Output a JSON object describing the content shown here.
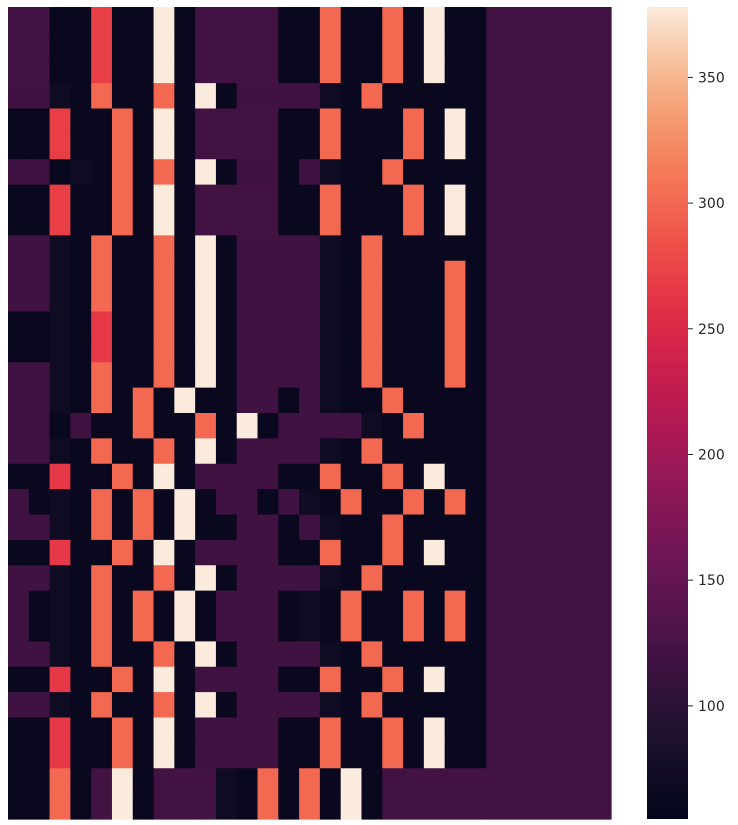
{
  "chart_data": {
    "type": "heatmap",
    "title": "",
    "xlabel": "",
    "ylabel": "",
    "n_cols": 29,
    "n_rows": 32,
    "colormap": "rocket",
    "colorbar": {
      "min": 55,
      "max": 378,
      "ticks": [
        100,
        150,
        200,
        250,
        300,
        350
      ],
      "tick_labels": [
        "100",
        "150",
        "200",
        "250",
        "300",
        "350"
      ]
    },
    "values": [
      [
        120,
        120,
        62,
        62,
        270,
        62,
        62,
        378,
        62,
        120,
        120,
        120,
        120,
        62,
        62,
        300,
        62,
        62,
        300,
        62,
        378,
        62,
        62,
        120,
        120,
        120,
        120,
        120,
        120
      ],
      [
        120,
        120,
        62,
        62,
        270,
        62,
        62,
        378,
        62,
        120,
        120,
        120,
        120,
        62,
        62,
        300,
        62,
        62,
        300,
        62,
        378,
        62,
        62,
        120,
        120,
        120,
        120,
        120,
        120
      ],
      [
        120,
        120,
        62,
        62,
        270,
        62,
        62,
        378,
        62,
        120,
        120,
        120,
        120,
        62,
        62,
        300,
        62,
        62,
        300,
        62,
        378,
        62,
        62,
        120,
        120,
        120,
        120,
        120,
        120
      ],
      [
        118,
        118,
        70,
        62,
        300,
        62,
        62,
        300,
        62,
        378,
        62,
        118,
        118,
        118,
        118,
        70,
        62,
        300,
        62,
        62,
        62,
        62,
        62,
        120,
        120,
        120,
        120,
        120,
        120
      ],
      [
        62,
        62,
        270,
        62,
        62,
        300,
        62,
        378,
        62,
        120,
        120,
        120,
        120,
        62,
        62,
        300,
        62,
        62,
        62,
        300,
        62,
        378,
        62,
        120,
        120,
        120,
        120,
        120,
        120
      ],
      [
        62,
        62,
        270,
        62,
        62,
        300,
        62,
        378,
        62,
        120,
        120,
        120,
        120,
        62,
        62,
        300,
        62,
        62,
        62,
        300,
        62,
        378,
        62,
        120,
        120,
        120,
        120,
        120,
        120
      ],
      [
        118,
        118,
        62,
        70,
        62,
        300,
        62,
        300,
        62,
        378,
        62,
        118,
        118,
        62,
        118,
        70,
        62,
        62,
        300,
        62,
        62,
        62,
        62,
        120,
        120,
        120,
        120,
        120,
        120
      ],
      [
        62,
        62,
        270,
        62,
        62,
        300,
        62,
        378,
        62,
        120,
        120,
        120,
        120,
        62,
        62,
        300,
        62,
        62,
        62,
        300,
        62,
        378,
        62,
        120,
        120,
        120,
        120,
        120,
        120
      ],
      [
        62,
        62,
        270,
        62,
        62,
        300,
        62,
        378,
        62,
        120,
        120,
        120,
        120,
        62,
        62,
        300,
        62,
        62,
        62,
        300,
        62,
        378,
        62,
        120,
        120,
        120,
        120,
        120,
        120
      ],
      [
        118,
        118,
        70,
        62,
        300,
        62,
        62,
        300,
        62,
        378,
        62,
        118,
        118,
        118,
        118,
        70,
        62,
        300,
        62,
        62,
        62,
        62,
        62,
        120,
        120,
        120,
        120,
        120,
        120
      ],
      [
        118,
        118,
        70,
        62,
        300,
        62,
        62,
        300,
        62,
        378,
        62,
        118,
        118,
        118,
        118,
        70,
        62,
        300,
        62,
        62,
        62,
        300,
        62,
        120,
        120,
        120,
        120,
        120,
        120
      ],
      [
        118,
        118,
        70,
        62,
        300,
        62,
        62,
        300,
        62,
        378,
        62,
        118,
        118,
        118,
        118,
        70,
        62,
        300,
        62,
        62,
        62,
        300,
        62,
        120,
        120,
        120,
        120,
        120,
        120
      ],
      [
        62,
        62,
        70,
        62,
        265,
        62,
        62,
        300,
        62,
        378,
        62,
        118,
        118,
        118,
        118,
        70,
        62,
        300,
        62,
        62,
        62,
        300,
        62,
        120,
        120,
        120,
        120,
        120,
        120
      ],
      [
        62,
        62,
        70,
        62,
        265,
        62,
        62,
        300,
        62,
        378,
        62,
        118,
        118,
        118,
        118,
        70,
        62,
        300,
        62,
        62,
        62,
        300,
        62,
        120,
        120,
        120,
        120,
        120,
        120
      ],
      [
        118,
        118,
        70,
        62,
        300,
        62,
        62,
        300,
        62,
        378,
        62,
        118,
        118,
        118,
        118,
        70,
        62,
        300,
        62,
        62,
        62,
        300,
        62,
        120,
        120,
        120,
        120,
        120,
        120
      ],
      [
        118,
        118,
        70,
        62,
        300,
        62,
        300,
        62,
        378,
        62,
        62,
        118,
        118,
        62,
        118,
        70,
        62,
        62,
        300,
        62,
        62,
        62,
        62,
        120,
        120,
        120,
        120,
        120,
        120
      ],
      [
        118,
        118,
        62,
        118,
        62,
        62,
        300,
        62,
        62,
        300,
        62,
        378,
        62,
        118,
        118,
        118,
        118,
        70,
        62,
        300,
        62,
        62,
        62,
        120,
        120,
        120,
        120,
        120,
        120
      ],
      [
        118,
        118,
        70,
        62,
        300,
        62,
        62,
        300,
        62,
        378,
        62,
        118,
        118,
        118,
        118,
        70,
        62,
        300,
        62,
        62,
        62,
        62,
        62,
        120,
        120,
        120,
        120,
        120,
        120
      ],
      [
        62,
        62,
        265,
        62,
        62,
        300,
        62,
        378,
        62,
        118,
        118,
        118,
        118,
        62,
        62,
        300,
        62,
        62,
        300,
        62,
        378,
        62,
        62,
        120,
        120,
        120,
        120,
        120,
        120
      ],
      [
        118,
        62,
        70,
        62,
        300,
        62,
        300,
        62,
        378,
        62,
        118,
        118,
        62,
        118,
        70,
        62,
        300,
        62,
        62,
        300,
        62,
        300,
        62,
        120,
        120,
        120,
        120,
        120,
        120
      ],
      [
        118,
        118,
        70,
        62,
        300,
        62,
        300,
        62,
        378,
        62,
        62,
        118,
        118,
        62,
        118,
        70,
        62,
        62,
        300,
        62,
        62,
        62,
        62,
        120,
        120,
        120,
        120,
        120,
        120
      ],
      [
        62,
        62,
        265,
        62,
        62,
        300,
        62,
        378,
        62,
        118,
        118,
        118,
        118,
        62,
        62,
        300,
        62,
        62,
        300,
        62,
        378,
        62,
        62,
        120,
        120,
        120,
        120,
        120,
        120
      ],
      [
        118,
        118,
        70,
        62,
        300,
        62,
        62,
        300,
        62,
        378,
        62,
        118,
        118,
        118,
        118,
        70,
        62,
        300,
        62,
        62,
        62,
        62,
        62,
        120,
        120,
        120,
        120,
        120,
        120
      ],
      [
        118,
        62,
        70,
        62,
        300,
        62,
        300,
        62,
        378,
        62,
        118,
        118,
        118,
        62,
        70,
        62,
        300,
        62,
        62,
        300,
        62,
        300,
        62,
        120,
        120,
        120,
        120,
        120,
        120
      ],
      [
        118,
        62,
        70,
        62,
        300,
        62,
        300,
        62,
        378,
        62,
        118,
        118,
        118,
        62,
        70,
        62,
        300,
        62,
        62,
        300,
        62,
        300,
        62,
        120,
        120,
        120,
        120,
        120,
        120
      ],
      [
        118,
        118,
        70,
        62,
        300,
        62,
        62,
        300,
        62,
        378,
        62,
        118,
        118,
        118,
        118,
        70,
        62,
        300,
        62,
        62,
        62,
        62,
        62,
        120,
        120,
        120,
        120,
        120,
        120
      ],
      [
        62,
        62,
        265,
        62,
        62,
        300,
        62,
        378,
        62,
        118,
        118,
        118,
        118,
        62,
        62,
        300,
        62,
        62,
        300,
        62,
        378,
        62,
        62,
        120,
        120,
        120,
        120,
        120,
        120
      ],
      [
        118,
        118,
        70,
        62,
        300,
        62,
        62,
        300,
        62,
        378,
        62,
        118,
        118,
        118,
        118,
        70,
        62,
        300,
        62,
        62,
        62,
        62,
        62,
        120,
        120,
        120,
        120,
        120,
        120
      ],
      [
        62,
        62,
        265,
        62,
        62,
        300,
        62,
        378,
        62,
        118,
        118,
        118,
        118,
        62,
        62,
        300,
        62,
        62,
        300,
        62,
        378,
        62,
        62,
        120,
        120,
        120,
        120,
        120,
        120
      ],
      [
        62,
        62,
        265,
        62,
        62,
        300,
        62,
        378,
        62,
        118,
        118,
        118,
        118,
        62,
        62,
        300,
        62,
        62,
        300,
        62,
        378,
        62,
        62,
        120,
        120,
        120,
        120,
        120,
        120
      ],
      [
        62,
        62,
        300,
        62,
        120,
        378,
        62,
        120,
        120,
        120,
        70,
        62,
        300,
        62,
        300,
        62,
        378,
        62,
        120,
        120,
        120,
        120,
        120,
        120,
        120,
        120,
        120,
        120,
        120
      ],
      [
        62,
        62,
        300,
        62,
        120,
        378,
        62,
        120,
        120,
        120,
        70,
        62,
        300,
        62,
        300,
        62,
        378,
        62,
        120,
        120,
        120,
        120,
        120,
        120,
        120,
        120,
        120,
        120,
        120
      ]
    ]
  }
}
